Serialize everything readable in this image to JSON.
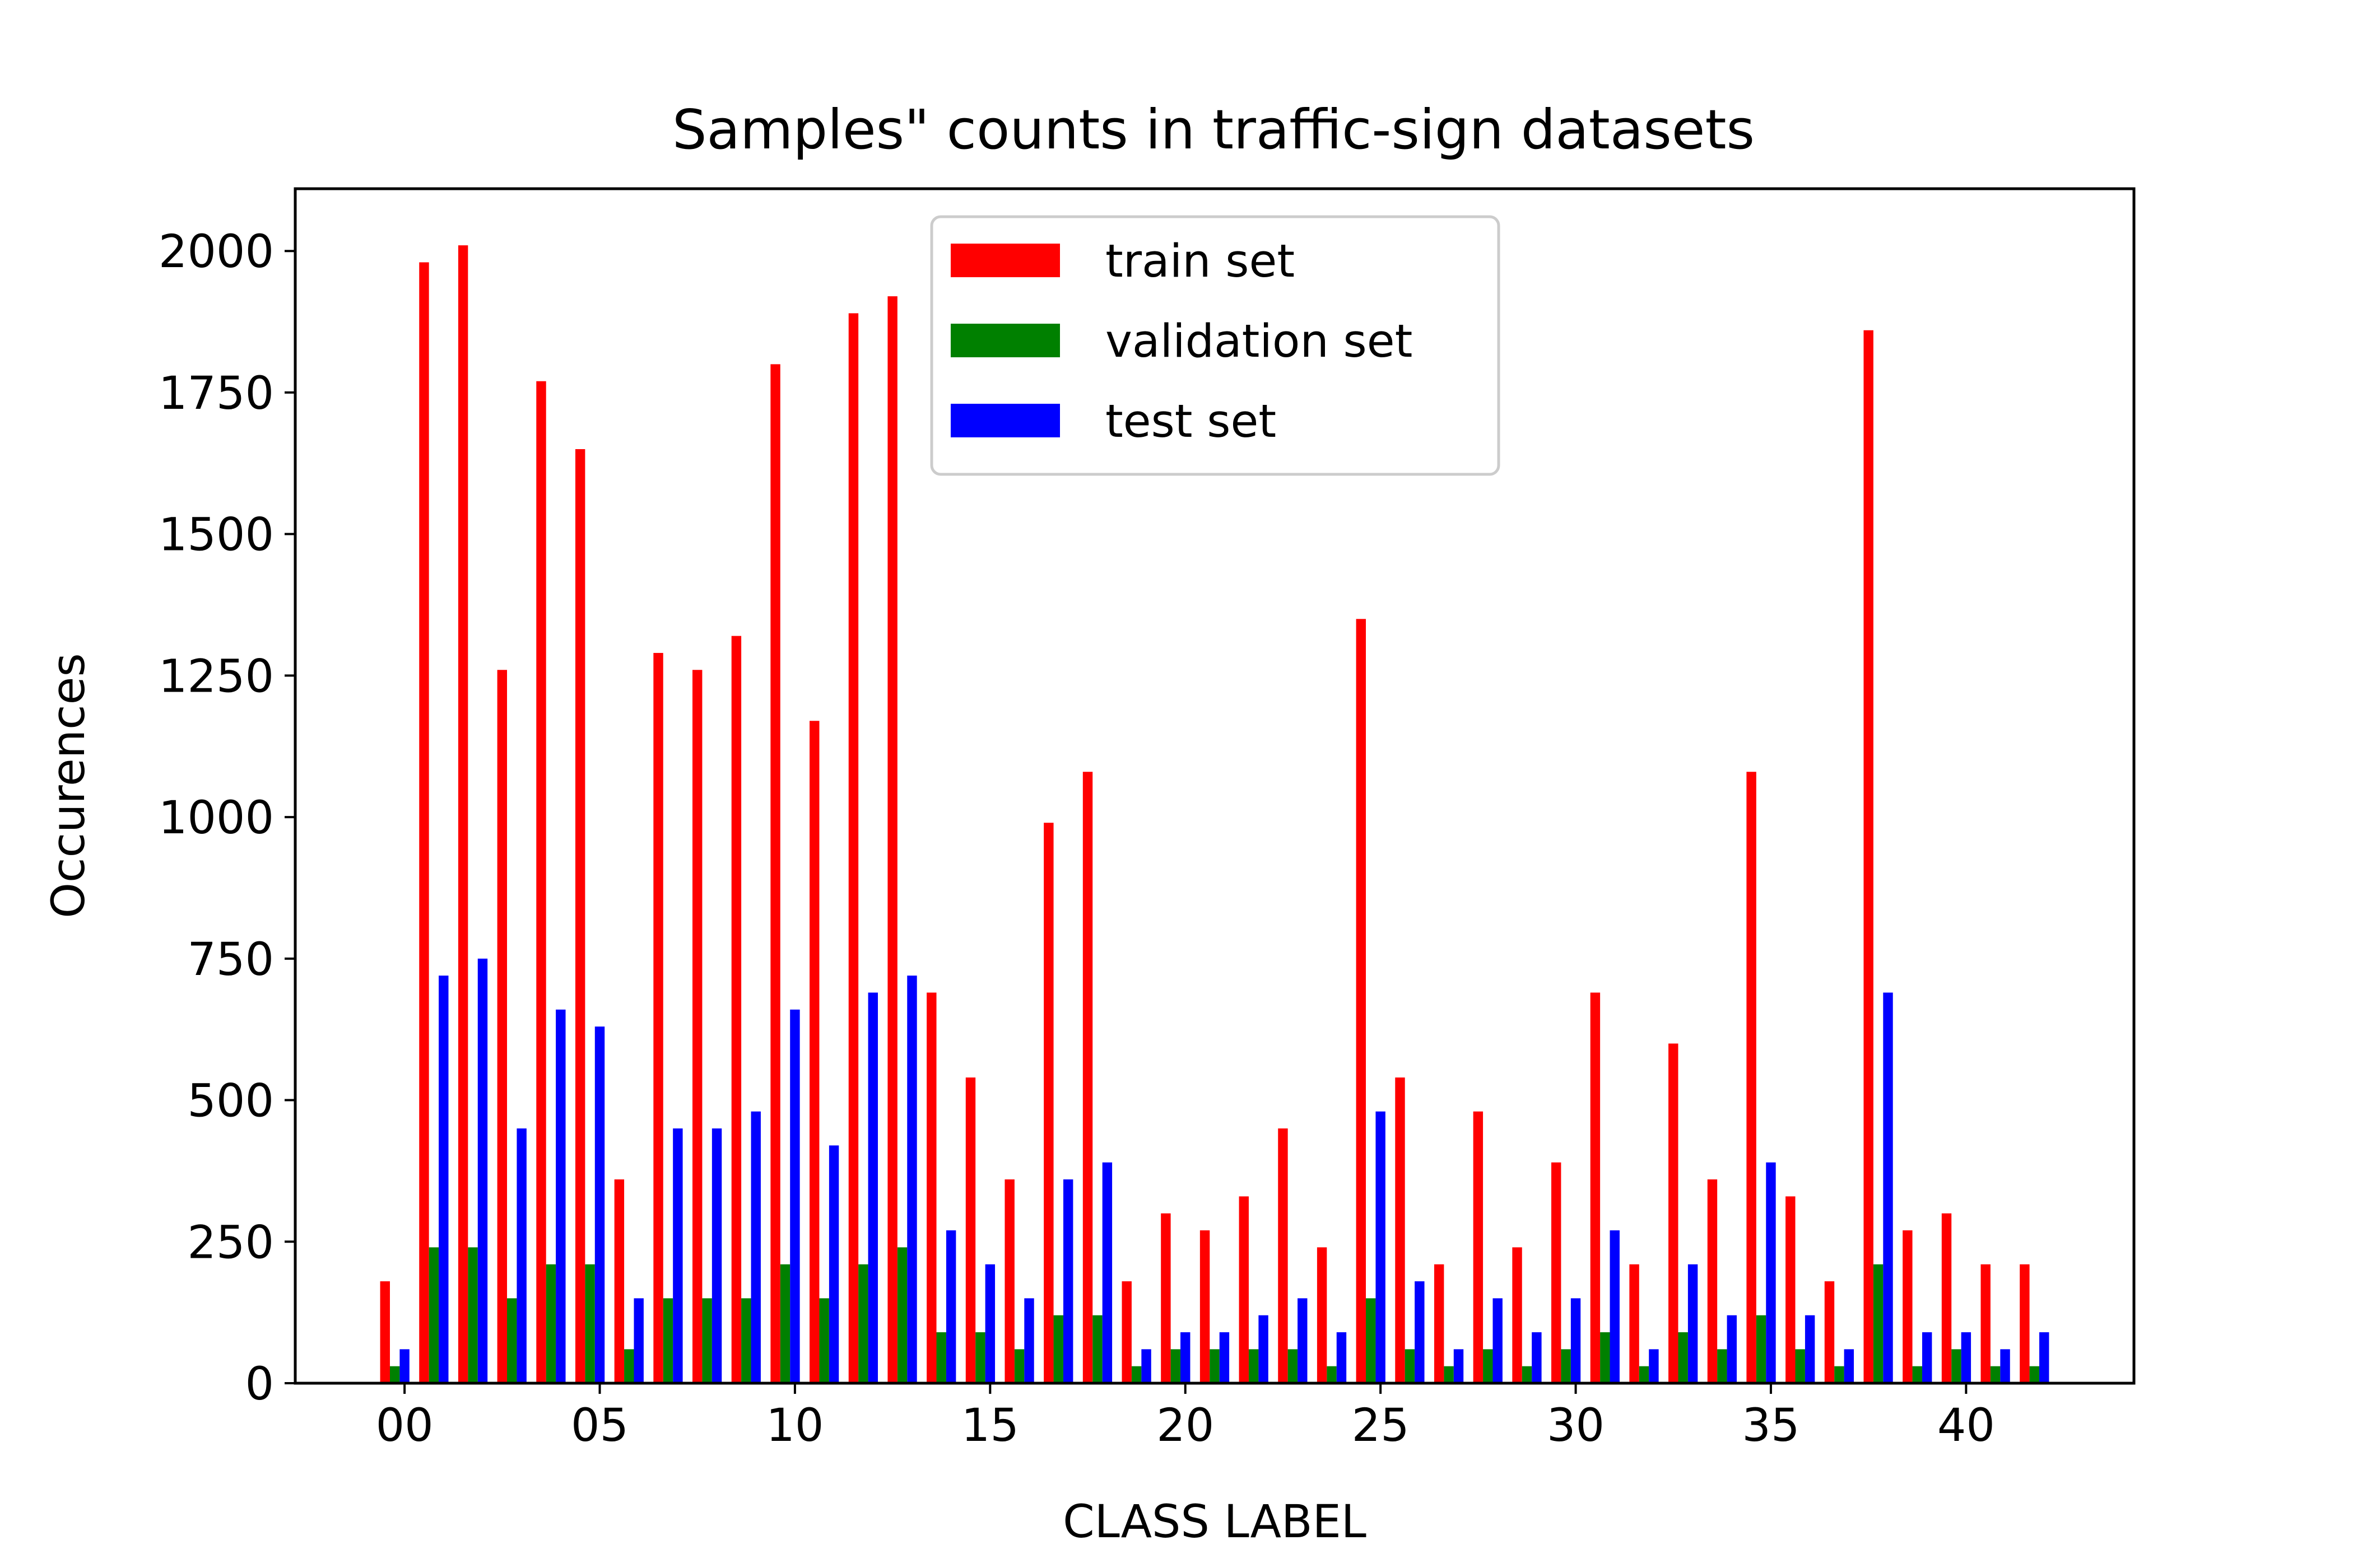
{
  "chart_data": {
    "type": "bar",
    "title": "Samples\" counts in traffic-sign datasets",
    "xlabel": "CLASS LABEL",
    "ylabel": "Occurences",
    "ylim": [
      0,
      2110
    ],
    "xlim": [
      -2.8,
      44.3
    ],
    "grid": false,
    "legend_position": "upper center",
    "x_ticks": [
      {
        "value": 0,
        "label": "00"
      },
      {
        "value": 5,
        "label": "05"
      },
      {
        "value": 10,
        "label": "10"
      },
      {
        "value": 15,
        "label": "15"
      },
      {
        "value": 20,
        "label": "20"
      },
      {
        "value": 25,
        "label": "25"
      },
      {
        "value": 30,
        "label": "30"
      },
      {
        "value": 35,
        "label": "35"
      },
      {
        "value": 40,
        "label": "40"
      }
    ],
    "y_ticks": [
      0,
      250,
      500,
      750,
      1000,
      1250,
      1500,
      1750,
      2000
    ],
    "categories": [
      0,
      1,
      2,
      3,
      4,
      5,
      6,
      7,
      8,
      9,
      10,
      11,
      12,
      13,
      14,
      15,
      16,
      17,
      18,
      19,
      20,
      21,
      22,
      23,
      24,
      25,
      26,
      27,
      28,
      29,
      30,
      31,
      32,
      33,
      34,
      35,
      36,
      37,
      38,
      39,
      40,
      41,
      42
    ],
    "series": [
      {
        "name": "train set",
        "color": "#ff0000",
        "values": [
          180,
          1980,
          2010,
          1260,
          1770,
          1650,
          360,
          1290,
          1260,
          1320,
          1800,
          1170,
          1890,
          1920,
          690,
          540,
          360,
          990,
          1080,
          180,
          300,
          270,
          330,
          450,
          240,
          1350,
          540,
          210,
          480,
          240,
          390,
          690,
          210,
          600,
          360,
          1080,
          330,
          180,
          1860,
          270,
          300,
          210,
          210
        ]
      },
      {
        "name": "validation set",
        "color": "#008000",
        "values": [
          30,
          240,
          240,
          150,
          210,
          210,
          60,
          150,
          150,
          150,
          210,
          150,
          210,
          240,
          90,
          90,
          60,
          120,
          120,
          30,
          60,
          60,
          60,
          60,
          30,
          150,
          60,
          30,
          60,
          30,
          60,
          90,
          30,
          90,
          60,
          120,
          60,
          30,
          210,
          30,
          60,
          30,
          30
        ]
      },
      {
        "name": "test set",
        "color": "#0000ff",
        "values": [
          60,
          720,
          750,
          450,
          660,
          630,
          150,
          450,
          450,
          480,
          660,
          420,
          690,
          720,
          270,
          210,
          150,
          360,
          390,
          60,
          90,
          90,
          120,
          150,
          90,
          480,
          180,
          60,
          150,
          90,
          150,
          270,
          60,
          210,
          120,
          390,
          120,
          60,
          690,
          90,
          90,
          60,
          90
        ]
      }
    ]
  }
}
